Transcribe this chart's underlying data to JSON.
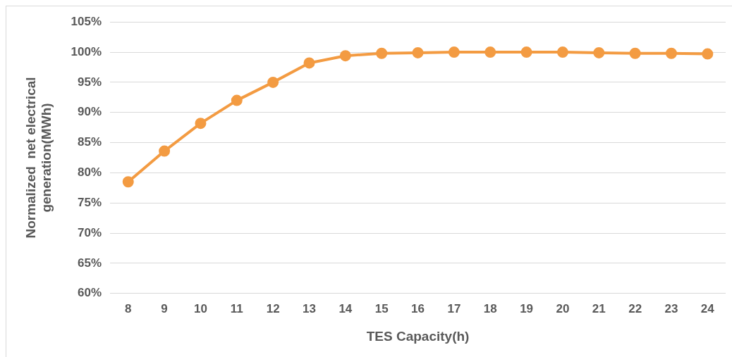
{
  "chart_data": {
    "type": "line",
    "xlabel": "TES Capacity(h)",
    "ylabel": "Normalized  net electrical\ngeneration(MWh)",
    "categories": [
      "8",
      "9",
      "10",
      "11",
      "12",
      "13",
      "14",
      "15",
      "16",
      "17",
      "18",
      "19",
      "20",
      "21",
      "22",
      "23",
      "24"
    ],
    "series": [
      {
        "color": "#f39b42",
        "values": [
          78.5,
          83.6,
          88.2,
          92.0,
          95.0,
          98.2,
          99.4,
          99.8,
          99.9,
          100.0,
          100.0,
          100.0,
          100.0,
          99.9,
          99.8,
          99.8,
          99.7
        ]
      }
    ],
    "ylim": [
      60,
      105
    ],
    "yticks": [
      {
        "value": 60,
        "label": "60%"
      },
      {
        "value": 65,
        "label": "65%"
      },
      {
        "value": 70,
        "label": "70%"
      },
      {
        "value": 75,
        "label": "75%"
      },
      {
        "value": 80,
        "label": "80%"
      },
      {
        "value": 85,
        "label": "85%"
      },
      {
        "value": 90,
        "label": "90%"
      },
      {
        "value": 95,
        "label": "95%"
      },
      {
        "value": 100,
        "label": "100%"
      },
      {
        "value": 105,
        "label": "105%"
      }
    ],
    "grid": "y",
    "legend": false,
    "marker": "circle",
    "line_style": "solid"
  }
}
